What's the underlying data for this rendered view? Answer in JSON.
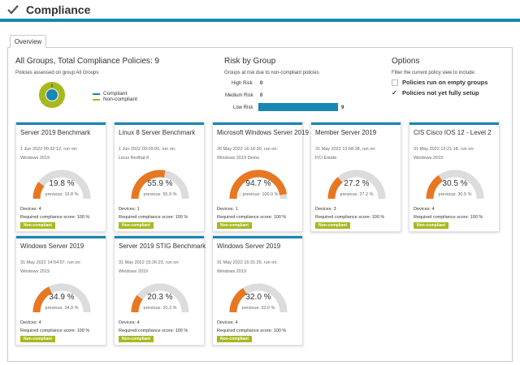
{
  "header": {
    "title": "Compliance"
  },
  "tabs": [
    {
      "label": "Overview"
    }
  ],
  "summary": {
    "title": "All Groups, Total Compliance Policies: 9",
    "subtitle": "Policies assessed on group All Groups",
    "donut_number": "9",
    "legend": [
      {
        "label": "Compliant",
        "color": "#1a86b4"
      },
      {
        "label": "Non-compliant",
        "color": "#a7b81e"
      }
    ]
  },
  "risk": {
    "title": "Risk by Group",
    "subtitle": "Groups at risk due to non-compliant policies",
    "rows": [
      {
        "label": "High Risk",
        "value": "0"
      },
      {
        "label": "Medium Risk",
        "value": "0"
      },
      {
        "label": "Low Risk",
        "value": "9"
      }
    ]
  },
  "options": {
    "title": "Options",
    "subtitle": "Filter the current policy view to include:",
    "items": [
      {
        "label": "Policies run on empty groups",
        "checked": false
      },
      {
        "label": "Policies not yet fully setup",
        "checked": true
      }
    ]
  },
  "colors": {
    "accent": "#1a86b4",
    "gauge": "#e87722",
    "track": "#dcdcdc",
    "badge": "#a7b81e"
  },
  "cards": [
    {
      "title": "Server 2019 Benchmark",
      "date": "1 Jun 2022 00:32:12, run on:",
      "target": "Windows 2019",
      "pct": "19.8 %",
      "value": 19.8,
      "previous": "previous: 19.8 %",
      "devices": "Devices: 4",
      "required": "Required compliance score: 100 %",
      "status": "Non-compliant"
    },
    {
      "title": "Linux 8 Server Benchmark",
      "date": "1 Jun 2022 00:09:00, run on:",
      "target": "Linux Redhat 8",
      "pct": "55.9 %",
      "value": 55.9,
      "previous": "previous: 55.9 %",
      "devices": "Devices: 1",
      "required": "Required compliance score: 100 %",
      "status": "Non-compliant"
    },
    {
      "title": "Microsoft Windows Server 2019",
      "date": "26 May 2022 16:16:30, run on:",
      "target": "Windows 2019 Demo",
      "pct": "94.7 %",
      "value": 94.7,
      "previous": "previous: 100.0 %",
      "down": true,
      "devices": "Devices: 1",
      "required": "Required compliance score: 100 %",
      "status": "Non-compliant"
    },
    {
      "title": "Member Server 2019",
      "date": "31 May 2022 13:58:38, run on:",
      "target": "PCI Estate",
      "pct": "27.2 %",
      "value": 27.2,
      "previous": "previous: 27.2 %",
      "devices": "Devices: 3",
      "required": "Required compliance score: 100 %",
      "status": "Non-compliant"
    },
    {
      "title": "CIS Cisco IOS 12 - Level 2",
      "date": "31 May 2022 13:21:18, run on:",
      "target": "Windows 2019",
      "pct": "30.5 %",
      "value": 30.5,
      "previous": "previous: 30.5 %",
      "devices": "Devices: 4",
      "required": "Required compliance score: 100 %",
      "status": "Non-compliant"
    },
    {
      "title": "Windows Server 2019",
      "date": "31 May 2022 14:54:07, run on:",
      "target": "Windows 2019",
      "pct": "34.9 %",
      "value": 34.9,
      "previous": "previous: 34.9 %",
      "devices": "Devices: 4",
      "required": "Required compliance score: 100 %",
      "status": "Non-compliant"
    },
    {
      "title": "Server 2019 STIG Benchmark",
      "date": "31 May 2022 15:26:23, run on:",
      "target": "Windows 2019",
      "pct": "20.3 %",
      "value": 20.3,
      "previous": "previous: 20.3 %",
      "devices": "Devices: 4",
      "required": "Required compliance score: 100 %",
      "status": "Non-compliant"
    },
    {
      "title": "Windows Server 2019",
      "date": "31 May 2022 15:31:26, run on:",
      "target": "Windows 2019",
      "pct": "32.0 %",
      "value": 32.0,
      "previous": "previous: 32.0 %",
      "devices": "Devices: 4",
      "required": "Required compliance score: 100 %",
      "status": "Non-compliant"
    }
  ]
}
